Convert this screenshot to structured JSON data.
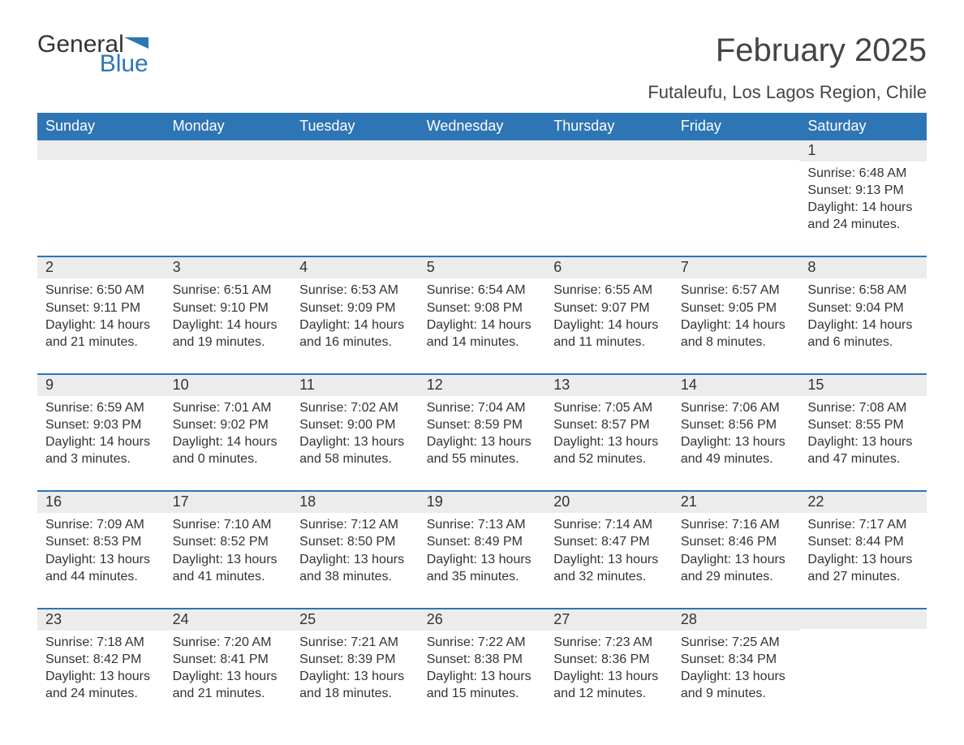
{
  "brand": {
    "word1": "General",
    "word2": "Blue",
    "flag_color": "#2e75b5"
  },
  "title": "February 2025",
  "location": "Futaleufu, Los Lagos Region, Chile",
  "colors": {
    "header_bg": "#2e75b5",
    "header_fg": "#ffffff",
    "row_rule": "#2e75b5",
    "daynum_bg": "#ececec",
    "text": "#333333",
    "bg": "#ffffff"
  },
  "weekdays": [
    "Sunday",
    "Monday",
    "Tuesday",
    "Wednesday",
    "Thursday",
    "Friday",
    "Saturday"
  ],
  "weeks": [
    [
      {
        "day": null
      },
      {
        "day": null
      },
      {
        "day": null
      },
      {
        "day": null
      },
      {
        "day": null
      },
      {
        "day": null
      },
      {
        "day": "1",
        "sunrise": "Sunrise: 6:48 AM",
        "sunset": "Sunset: 9:13 PM",
        "daylight": "Daylight: 14 hours and 24 minutes."
      }
    ],
    [
      {
        "day": "2",
        "sunrise": "Sunrise: 6:50 AM",
        "sunset": "Sunset: 9:11 PM",
        "daylight": "Daylight: 14 hours and 21 minutes."
      },
      {
        "day": "3",
        "sunrise": "Sunrise: 6:51 AM",
        "sunset": "Sunset: 9:10 PM",
        "daylight": "Daylight: 14 hours and 19 minutes."
      },
      {
        "day": "4",
        "sunrise": "Sunrise: 6:53 AM",
        "sunset": "Sunset: 9:09 PM",
        "daylight": "Daylight: 14 hours and 16 minutes."
      },
      {
        "day": "5",
        "sunrise": "Sunrise: 6:54 AM",
        "sunset": "Sunset: 9:08 PM",
        "daylight": "Daylight: 14 hours and 14 minutes."
      },
      {
        "day": "6",
        "sunrise": "Sunrise: 6:55 AM",
        "sunset": "Sunset: 9:07 PM",
        "daylight": "Daylight: 14 hours and 11 minutes."
      },
      {
        "day": "7",
        "sunrise": "Sunrise: 6:57 AM",
        "sunset": "Sunset: 9:05 PM",
        "daylight": "Daylight: 14 hours and 8 minutes."
      },
      {
        "day": "8",
        "sunrise": "Sunrise: 6:58 AM",
        "sunset": "Sunset: 9:04 PM",
        "daylight": "Daylight: 14 hours and 6 minutes."
      }
    ],
    [
      {
        "day": "9",
        "sunrise": "Sunrise: 6:59 AM",
        "sunset": "Sunset: 9:03 PM",
        "daylight": "Daylight: 14 hours and 3 minutes."
      },
      {
        "day": "10",
        "sunrise": "Sunrise: 7:01 AM",
        "sunset": "Sunset: 9:02 PM",
        "daylight": "Daylight: 14 hours and 0 minutes."
      },
      {
        "day": "11",
        "sunrise": "Sunrise: 7:02 AM",
        "sunset": "Sunset: 9:00 PM",
        "daylight": "Daylight: 13 hours and 58 minutes."
      },
      {
        "day": "12",
        "sunrise": "Sunrise: 7:04 AM",
        "sunset": "Sunset: 8:59 PM",
        "daylight": "Daylight: 13 hours and 55 minutes."
      },
      {
        "day": "13",
        "sunrise": "Sunrise: 7:05 AM",
        "sunset": "Sunset: 8:57 PM",
        "daylight": "Daylight: 13 hours and 52 minutes."
      },
      {
        "day": "14",
        "sunrise": "Sunrise: 7:06 AM",
        "sunset": "Sunset: 8:56 PM",
        "daylight": "Daylight: 13 hours and 49 minutes."
      },
      {
        "day": "15",
        "sunrise": "Sunrise: 7:08 AM",
        "sunset": "Sunset: 8:55 PM",
        "daylight": "Daylight: 13 hours and 47 minutes."
      }
    ],
    [
      {
        "day": "16",
        "sunrise": "Sunrise: 7:09 AM",
        "sunset": "Sunset: 8:53 PM",
        "daylight": "Daylight: 13 hours and 44 minutes."
      },
      {
        "day": "17",
        "sunrise": "Sunrise: 7:10 AM",
        "sunset": "Sunset: 8:52 PM",
        "daylight": "Daylight: 13 hours and 41 minutes."
      },
      {
        "day": "18",
        "sunrise": "Sunrise: 7:12 AM",
        "sunset": "Sunset: 8:50 PM",
        "daylight": "Daylight: 13 hours and 38 minutes."
      },
      {
        "day": "19",
        "sunrise": "Sunrise: 7:13 AM",
        "sunset": "Sunset: 8:49 PM",
        "daylight": "Daylight: 13 hours and 35 minutes."
      },
      {
        "day": "20",
        "sunrise": "Sunrise: 7:14 AM",
        "sunset": "Sunset: 8:47 PM",
        "daylight": "Daylight: 13 hours and 32 minutes."
      },
      {
        "day": "21",
        "sunrise": "Sunrise: 7:16 AM",
        "sunset": "Sunset: 8:46 PM",
        "daylight": "Daylight: 13 hours and 29 minutes."
      },
      {
        "day": "22",
        "sunrise": "Sunrise: 7:17 AM",
        "sunset": "Sunset: 8:44 PM",
        "daylight": "Daylight: 13 hours and 27 minutes."
      }
    ],
    [
      {
        "day": "23",
        "sunrise": "Sunrise: 7:18 AM",
        "sunset": "Sunset: 8:42 PM",
        "daylight": "Daylight: 13 hours and 24 minutes."
      },
      {
        "day": "24",
        "sunrise": "Sunrise: 7:20 AM",
        "sunset": "Sunset: 8:41 PM",
        "daylight": "Daylight: 13 hours and 21 minutes."
      },
      {
        "day": "25",
        "sunrise": "Sunrise: 7:21 AM",
        "sunset": "Sunset: 8:39 PM",
        "daylight": "Daylight: 13 hours and 18 minutes."
      },
      {
        "day": "26",
        "sunrise": "Sunrise: 7:22 AM",
        "sunset": "Sunset: 8:38 PM",
        "daylight": "Daylight: 13 hours and 15 minutes."
      },
      {
        "day": "27",
        "sunrise": "Sunrise: 7:23 AM",
        "sunset": "Sunset: 8:36 PM",
        "daylight": "Daylight: 13 hours and 12 minutes."
      },
      {
        "day": "28",
        "sunrise": "Sunrise: 7:25 AM",
        "sunset": "Sunset: 8:34 PM",
        "daylight": "Daylight: 13 hours and 9 minutes."
      },
      {
        "day": null
      }
    ]
  ]
}
